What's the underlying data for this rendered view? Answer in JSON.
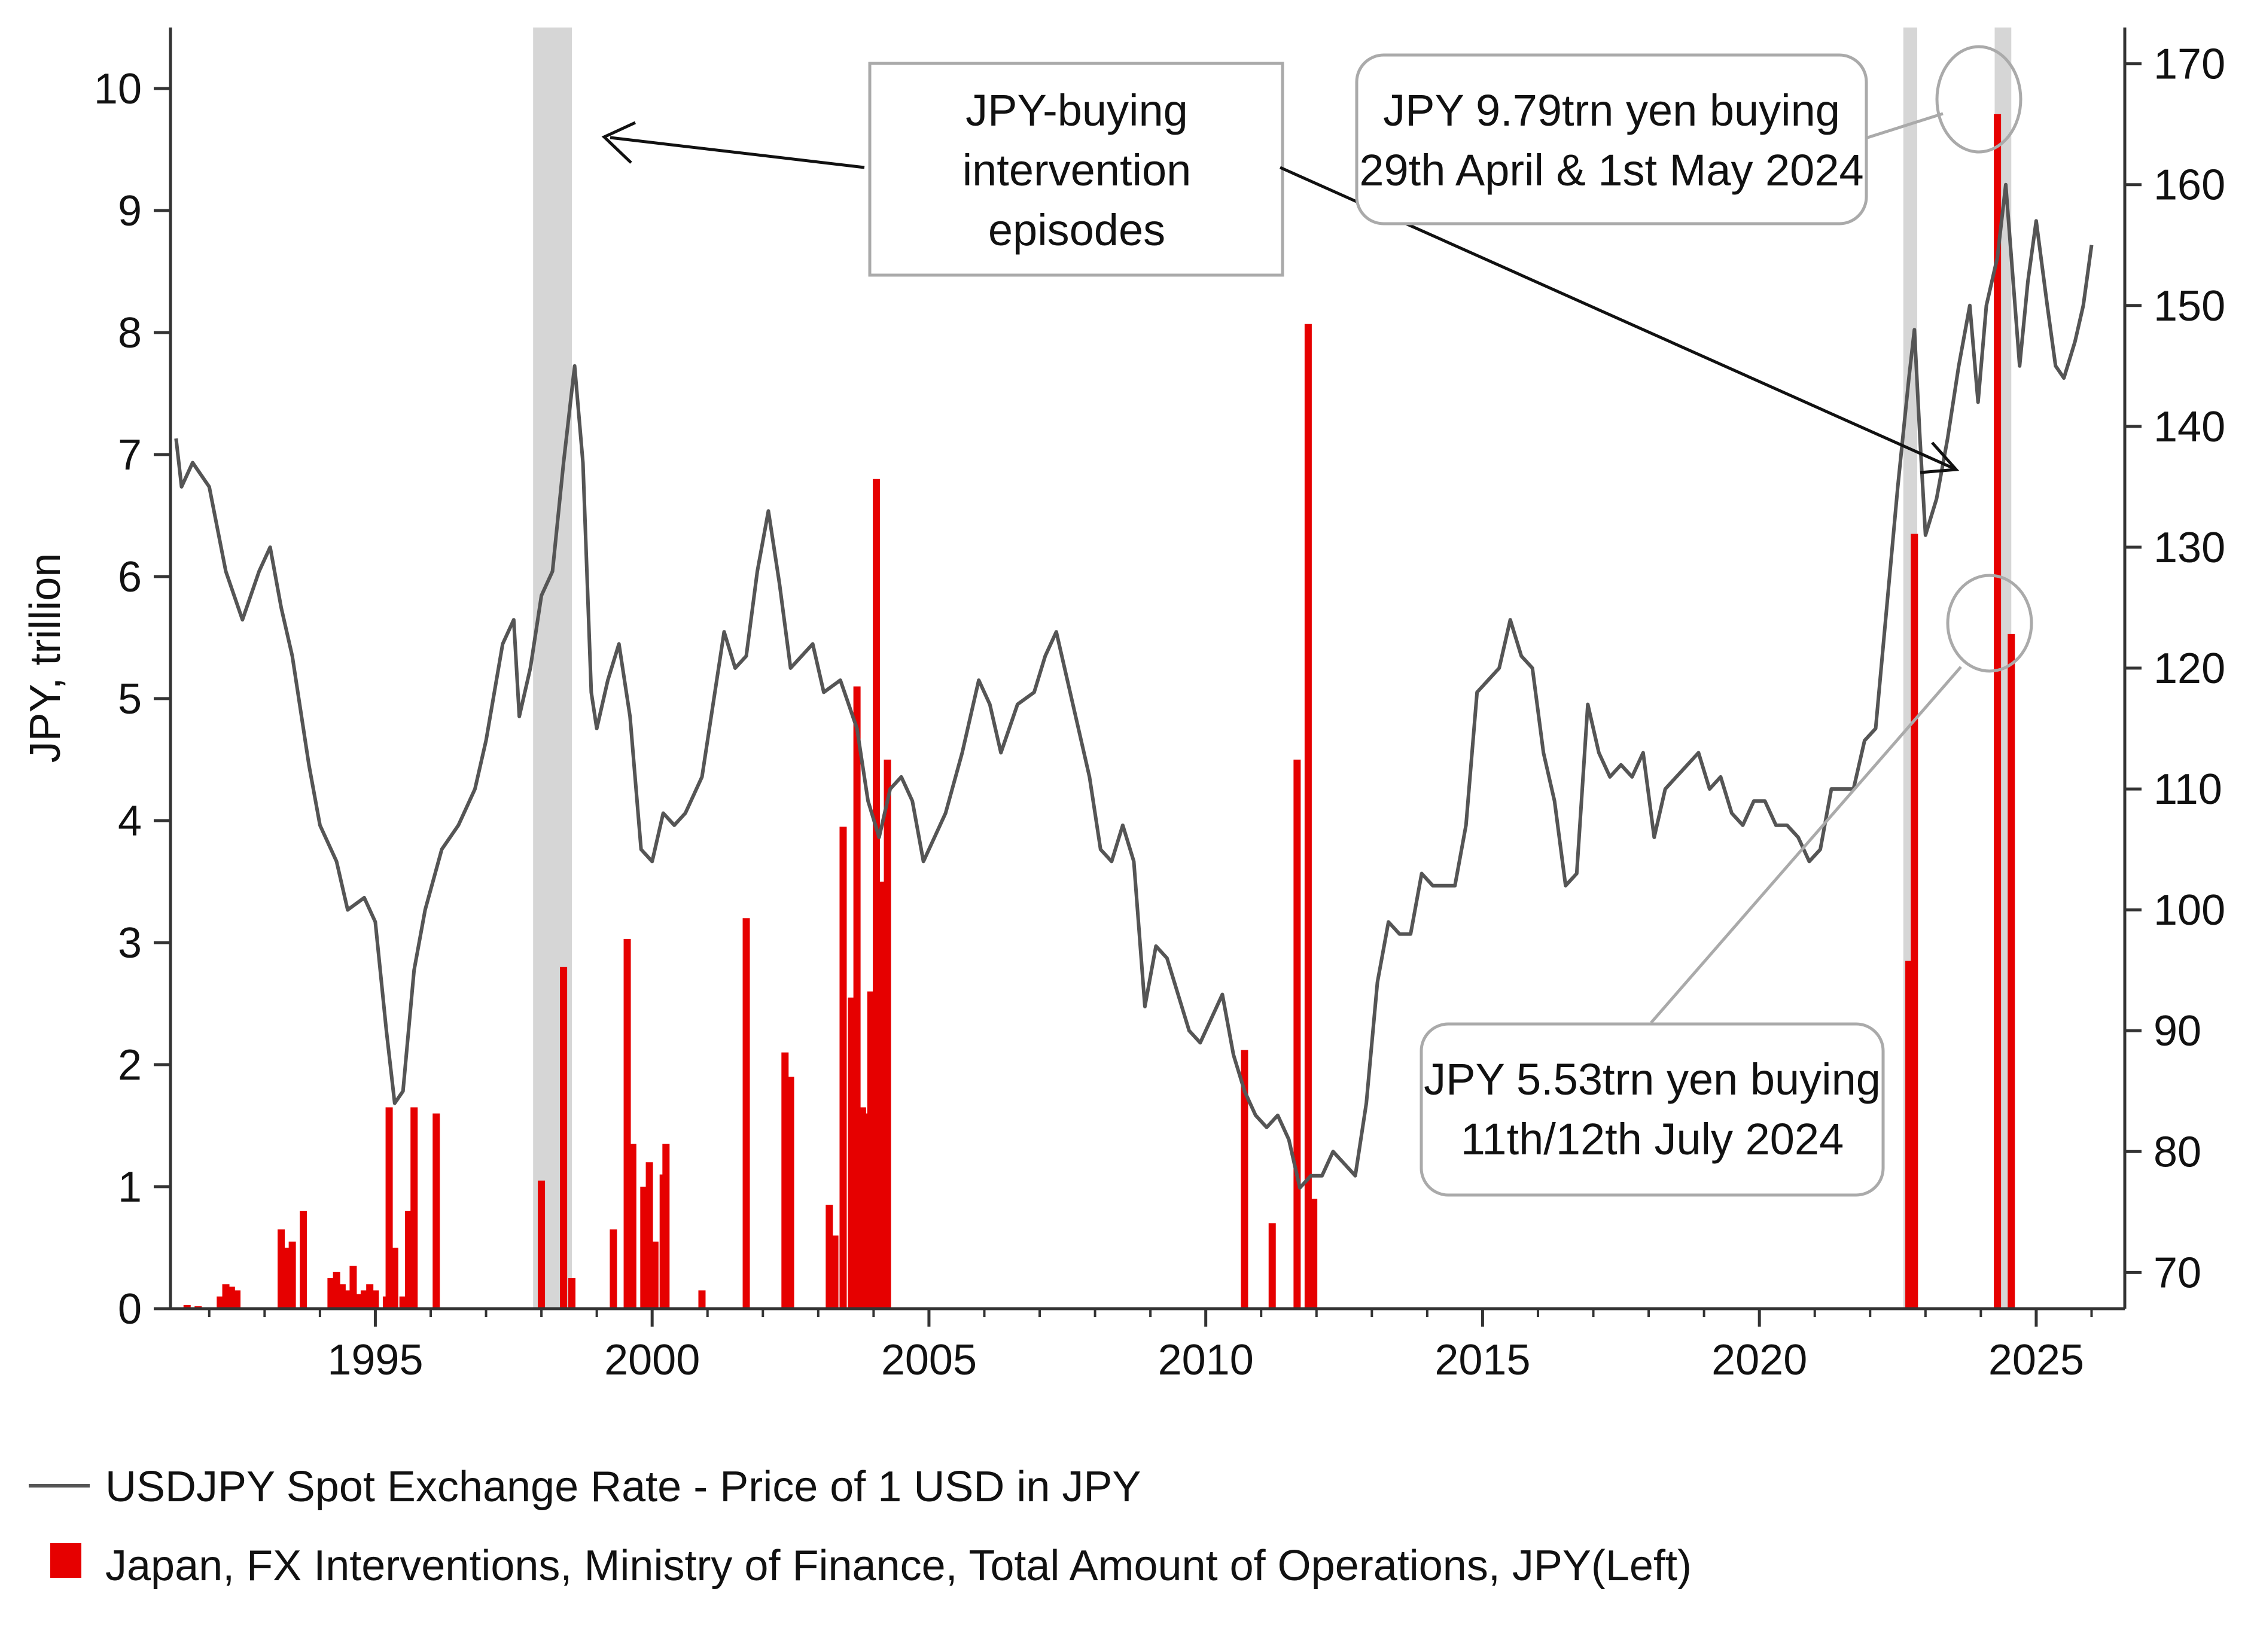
{
  "chart_data": {
    "type": "bar+line",
    "xlabel": "",
    "ylabel_left": "JPY, trillion",
    "ylabel_right": "",
    "xlim": [
      1991.3,
      2026.6
    ],
    "ylim_left": [
      0,
      10.5
    ],
    "ylim_right": [
      67,
      173
    ],
    "x_ticks": [
      "1995",
      "2000",
      "2005",
      "2010",
      "2015",
      "2020",
      "2025"
    ],
    "y_left_ticks": [
      "0",
      "1",
      "2",
      "3",
      "4",
      "5",
      "6",
      "7",
      "8",
      "9",
      "10"
    ],
    "y_right_ticks": [
      "70",
      "80",
      "90",
      "100",
      "110",
      "120",
      "130",
      "140",
      "150",
      "160",
      "170"
    ],
    "grid": false,
    "colors": {
      "line": "#555555",
      "bars": "#e60000",
      "shade": "#d6d6d6",
      "callout_border": "#aaaaaa"
    },
    "shaded_periods": [
      {
        "start": 1997.85,
        "end": 1998.55
      },
      {
        "start": 2022.6,
        "end": 2022.85
      },
      {
        "start": 2024.25,
        "end": 2024.55
      }
    ],
    "series": [
      {
        "name": "USDJPY Spot Exchange Rate - Price of 1 USD in JPY",
        "axis": "right",
        "type": "line",
        "points": [
          [
            1991.4,
            139
          ],
          [
            1991.5,
            135
          ],
          [
            1991.7,
            137
          ],
          [
            1992.0,
            135
          ],
          [
            1992.3,
            128
          ],
          [
            1992.6,
            124
          ],
          [
            1992.9,
            128
          ],
          [
            1993.1,
            130
          ],
          [
            1993.3,
            125
          ],
          [
            1993.5,
            121
          ],
          [
            1993.8,
            112
          ],
          [
            1994.0,
            107
          ],
          [
            1994.3,
            104
          ],
          [
            1994.5,
            100
          ],
          [
            1994.8,
            101
          ],
          [
            1995.0,
            99
          ],
          [
            1995.2,
            90
          ],
          [
            1995.35,
            84
          ],
          [
            1995.5,
            85
          ],
          [
            1995.7,
            95
          ],
          [
            1995.9,
            100
          ],
          [
            1996.2,
            105
          ],
          [
            1996.5,
            107
          ],
          [
            1996.8,
            110
          ],
          [
            1997.0,
            114
          ],
          [
            1997.3,
            122
          ],
          [
            1997.5,
            124
          ],
          [
            1997.6,
            116
          ],
          [
            1997.8,
            120
          ],
          [
            1998.0,
            126
          ],
          [
            1998.2,
            128
          ],
          [
            1998.4,
            137
          ],
          [
            1998.6,
            145
          ],
          [
            1998.75,
            137
          ],
          [
            1998.9,
            118
          ],
          [
            1999.0,
            115
          ],
          [
            1999.2,
            119
          ],
          [
            1999.4,
            122
          ],
          [
            1999.6,
            116
          ],
          [
            1999.8,
            105
          ],
          [
            2000.0,
            104
          ],
          [
            2000.2,
            108
          ],
          [
            2000.4,
            107
          ],
          [
            2000.6,
            108
          ],
          [
            2000.9,
            111
          ],
          [
            2001.1,
            117
          ],
          [
            2001.3,
            123
          ],
          [
            2001.5,
            120
          ],
          [
            2001.7,
            121
          ],
          [
            2001.9,
            128
          ],
          [
            2002.1,
            133
          ],
          [
            2002.3,
            127
          ],
          [
            2002.5,
            120
          ],
          [
            2002.7,
            121
          ],
          [
            2002.9,
            122
          ],
          [
            2003.1,
            118
          ],
          [
            2003.4,
            119
          ],
          [
            2003.7,
            115
          ],
          [
            2003.9,
            109
          ],
          [
            2004.1,
            106
          ],
          [
            2004.3,
            110
          ],
          [
            2004.5,
            111
          ],
          [
            2004.7,
            109
          ],
          [
            2004.9,
            104
          ],
          [
            2005.1,
            106
          ],
          [
            2005.3,
            108
          ],
          [
            2005.6,
            113
          ],
          [
            2005.9,
            119
          ],
          [
            2006.1,
            117
          ],
          [
            2006.3,
            113
          ],
          [
            2006.6,
            117
          ],
          [
            2006.9,
            118
          ],
          [
            2007.1,
            121
          ],
          [
            2007.3,
            123
          ],
          [
            2007.5,
            119
          ],
          [
            2007.7,
            115
          ],
          [
            2007.9,
            111
          ],
          [
            2008.1,
            105
          ],
          [
            2008.3,
            104
          ],
          [
            2008.5,
            107
          ],
          [
            2008.7,
            104
          ],
          [
            2008.9,
            92
          ],
          [
            2009.1,
            97
          ],
          [
            2009.3,
            96
          ],
          [
            2009.5,
            93
          ],
          [
            2009.7,
            90
          ],
          [
            2009.9,
            89
          ],
          [
            2010.1,
            91
          ],
          [
            2010.3,
            93
          ],
          [
            2010.5,
            88
          ],
          [
            2010.7,
            85
          ],
          [
            2010.9,
            83
          ],
          [
            2011.1,
            82
          ],
          [
            2011.3,
            83
          ],
          [
            2011.5,
            81
          ],
          [
            2011.7,
            77
          ],
          [
            2011.9,
            78
          ],
          [
            2012.1,
            78
          ],
          [
            2012.3,
            80
          ],
          [
            2012.5,
            79
          ],
          [
            2012.7,
            78
          ],
          [
            2012.9,
            84
          ],
          [
            2013.1,
            94
          ],
          [
            2013.3,
            99
          ],
          [
            2013.5,
            98
          ],
          [
            2013.7,
            98
          ],
          [
            2013.9,
            103
          ],
          [
            2014.1,
            102
          ],
          [
            2014.3,
            102
          ],
          [
            2014.5,
            102
          ],
          [
            2014.7,
            107
          ],
          [
            2014.9,
            118
          ],
          [
            2015.1,
            119
          ],
          [
            2015.3,
            120
          ],
          [
            2015.5,
            124
          ],
          [
            2015.7,
            121
          ],
          [
            2015.9,
            120
          ],
          [
            2016.1,
            113
          ],
          [
            2016.3,
            109
          ],
          [
            2016.5,
            102
          ],
          [
            2016.7,
            103
          ],
          [
            2016.9,
            117
          ],
          [
            2017.1,
            113
          ],
          [
            2017.3,
            111
          ],
          [
            2017.5,
            112
          ],
          [
            2017.7,
            111
          ],
          [
            2017.9,
            113
          ],
          [
            2018.1,
            106
          ],
          [
            2018.3,
            110
          ],
          [
            2018.5,
            111
          ],
          [
            2018.7,
            112
          ],
          [
            2018.9,
            113
          ],
          [
            2019.1,
            110
          ],
          [
            2019.3,
            111
          ],
          [
            2019.5,
            108
          ],
          [
            2019.7,
            107
          ],
          [
            2019.9,
            109
          ],
          [
            2020.1,
            109
          ],
          [
            2020.3,
            107
          ],
          [
            2020.5,
            107
          ],
          [
            2020.7,
            106
          ],
          [
            2020.9,
            104
          ],
          [
            2021.1,
            105
          ],
          [
            2021.3,
            110
          ],
          [
            2021.5,
            110
          ],
          [
            2021.7,
            110
          ],
          [
            2021.9,
            114
          ],
          [
            2022.1,
            115
          ],
          [
            2022.3,
            125
          ],
          [
            2022.5,
            135
          ],
          [
            2022.7,
            144
          ],
          [
            2022.8,
            148
          ],
          [
            2022.9,
            139
          ],
          [
            2023.0,
            131
          ],
          [
            2023.2,
            134
          ],
          [
            2023.4,
            139
          ],
          [
            2023.6,
            145
          ],
          [
            2023.8,
            150
          ],
          [
            2023.95,
            142
          ],
          [
            2024.1,
            150
          ],
          [
            2024.3,
            154
          ],
          [
            2024.45,
            160
          ],
          [
            2024.55,
            154
          ],
          [
            2024.7,
            145
          ],
          [
            2024.85,
            152
          ],
          [
            2025.0,
            157
          ],
          [
            2025.2,
            150
          ],
          [
            2025.35,
            145
          ],
          [
            2025.5,
            144
          ],
          [
            2025.7,
            147
          ],
          [
            2025.85,
            150
          ],
          [
            2026.0,
            155
          ]
        ]
      },
      {
        "name": "Japan, FX Interventions, Ministry of Finance, Total Amount of Operations, JPY(Left)",
        "axis": "left",
        "type": "bar",
        "points": [
          [
            1991.6,
            0.03
          ],
          [
            1991.8,
            0.02
          ],
          [
            1992.2,
            0.1
          ],
          [
            1992.3,
            0.2
          ],
          [
            1992.4,
            0.18
          ],
          [
            1992.5,
            0.15
          ],
          [
            1993.3,
            0.65
          ],
          [
            1993.4,
            0.5
          ],
          [
            1993.5,
            0.55
          ],
          [
            1993.7,
            0.8
          ],
          [
            1994.2,
            0.25
          ],
          [
            1994.3,
            0.3
          ],
          [
            1994.4,
            0.2
          ],
          [
            1994.5,
            0.15
          ],
          [
            1994.6,
            0.35
          ],
          [
            1994.7,
            0.12
          ],
          [
            1994.8,
            0.15
          ],
          [
            1994.9,
            0.2
          ],
          [
            1995.0,
            0.15
          ],
          [
            1995.2,
            0.1
          ],
          [
            1995.25,
            1.65
          ],
          [
            1995.35,
            0.5
          ],
          [
            1995.5,
            0.1
          ],
          [
            1995.6,
            0.8
          ],
          [
            1995.7,
            1.65
          ],
          [
            1996.1,
            1.6
          ],
          [
            1998.0,
            1.05
          ],
          [
            1998.4,
            2.8
          ],
          [
            1998.55,
            0.25
          ],
          [
            1999.3,
            0.65
          ],
          [
            1999.55,
            3.03
          ],
          [
            1999.65,
            1.35
          ],
          [
            1999.85,
            1.0
          ],
          [
            1999.95,
            1.2
          ],
          [
            2000.05,
            0.55
          ],
          [
            2000.2,
            1.1
          ],
          [
            2000.25,
            1.35
          ],
          [
            2000.9,
            0.15
          ],
          [
            2001.7,
            3.2
          ],
          [
            2002.4,
            2.1
          ],
          [
            2002.5,
            1.9
          ],
          [
            2003.2,
            0.85
          ],
          [
            2003.3,
            0.6
          ],
          [
            2003.45,
            3.95
          ],
          [
            2003.6,
            2.55
          ],
          [
            2003.7,
            5.1
          ],
          [
            2003.8,
            1.65
          ],
          [
            2003.85,
            1.6
          ],
          [
            2003.95,
            2.6
          ],
          [
            2004.05,
            6.8
          ],
          [
            2004.15,
            3.5
          ],
          [
            2004.25,
            4.5
          ],
          [
            2010.7,
            2.12
          ],
          [
            2011.2,
            0.7
          ],
          [
            2011.65,
            4.5
          ],
          [
            2011.85,
            8.07
          ],
          [
            2011.95,
            0.9
          ],
          [
            2022.7,
            2.85
          ],
          [
            2022.8,
            6.35
          ],
          [
            2024.3,
            9.79
          ],
          [
            2024.55,
            5.53
          ]
        ]
      }
    ],
    "annotations": [
      {
        "lines": [
          "JPY-buying",
          "intervention",
          "episodes"
        ]
      },
      {
        "lines": [
          "JPY 9.79trn yen buying",
          "29th April & 1st May 2024"
        ]
      },
      {
        "lines": [
          "JPY 5.53trn yen buying",
          "11th/12th July 2024"
        ]
      }
    ]
  },
  "legend": [
    {
      "label": "USDJPY Spot Exchange Rate - Price of 1 USD in JPY",
      "marker": "line"
    },
    {
      "label": "Japan, FX Interventions, Ministry of Finance, Total Amount of Operations, JPY(Left)",
      "marker": "square"
    }
  ]
}
